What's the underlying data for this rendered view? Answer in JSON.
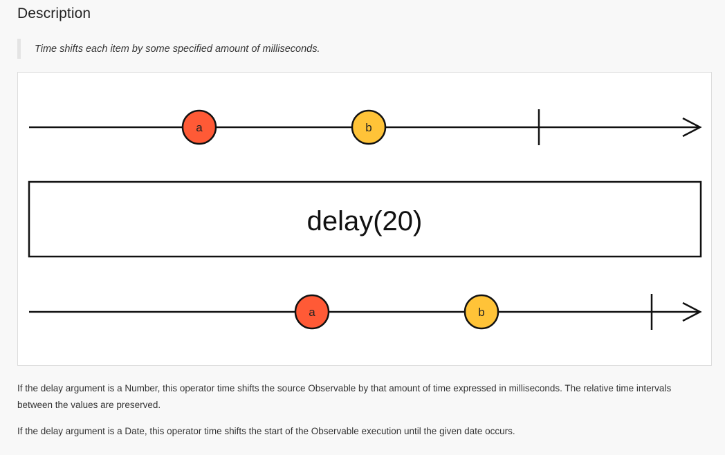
{
  "section": {
    "heading": "Description",
    "quote": "Time shifts each item by some specified amount of milliseconds."
  },
  "diagram": {
    "operator_label": "delay(20)",
    "input_items": [
      {
        "label": "a",
        "color": "#ff5a36"
      },
      {
        "label": "b",
        "color": "#ffc338"
      }
    ],
    "output_items": [
      {
        "label": "a",
        "color": "#ff5a36"
      },
      {
        "label": "b",
        "color": "#ffc338"
      }
    ]
  },
  "paragraphs": {
    "p1": "If the delay argument is a Number, this operator time shifts the source Observable by that amount of time expressed in milliseconds. The relative time intervals between the values are preserved.",
    "p2": "If the delay argument is a Date, this operator time shifts the start of the Observable execution until the given date occurs."
  }
}
